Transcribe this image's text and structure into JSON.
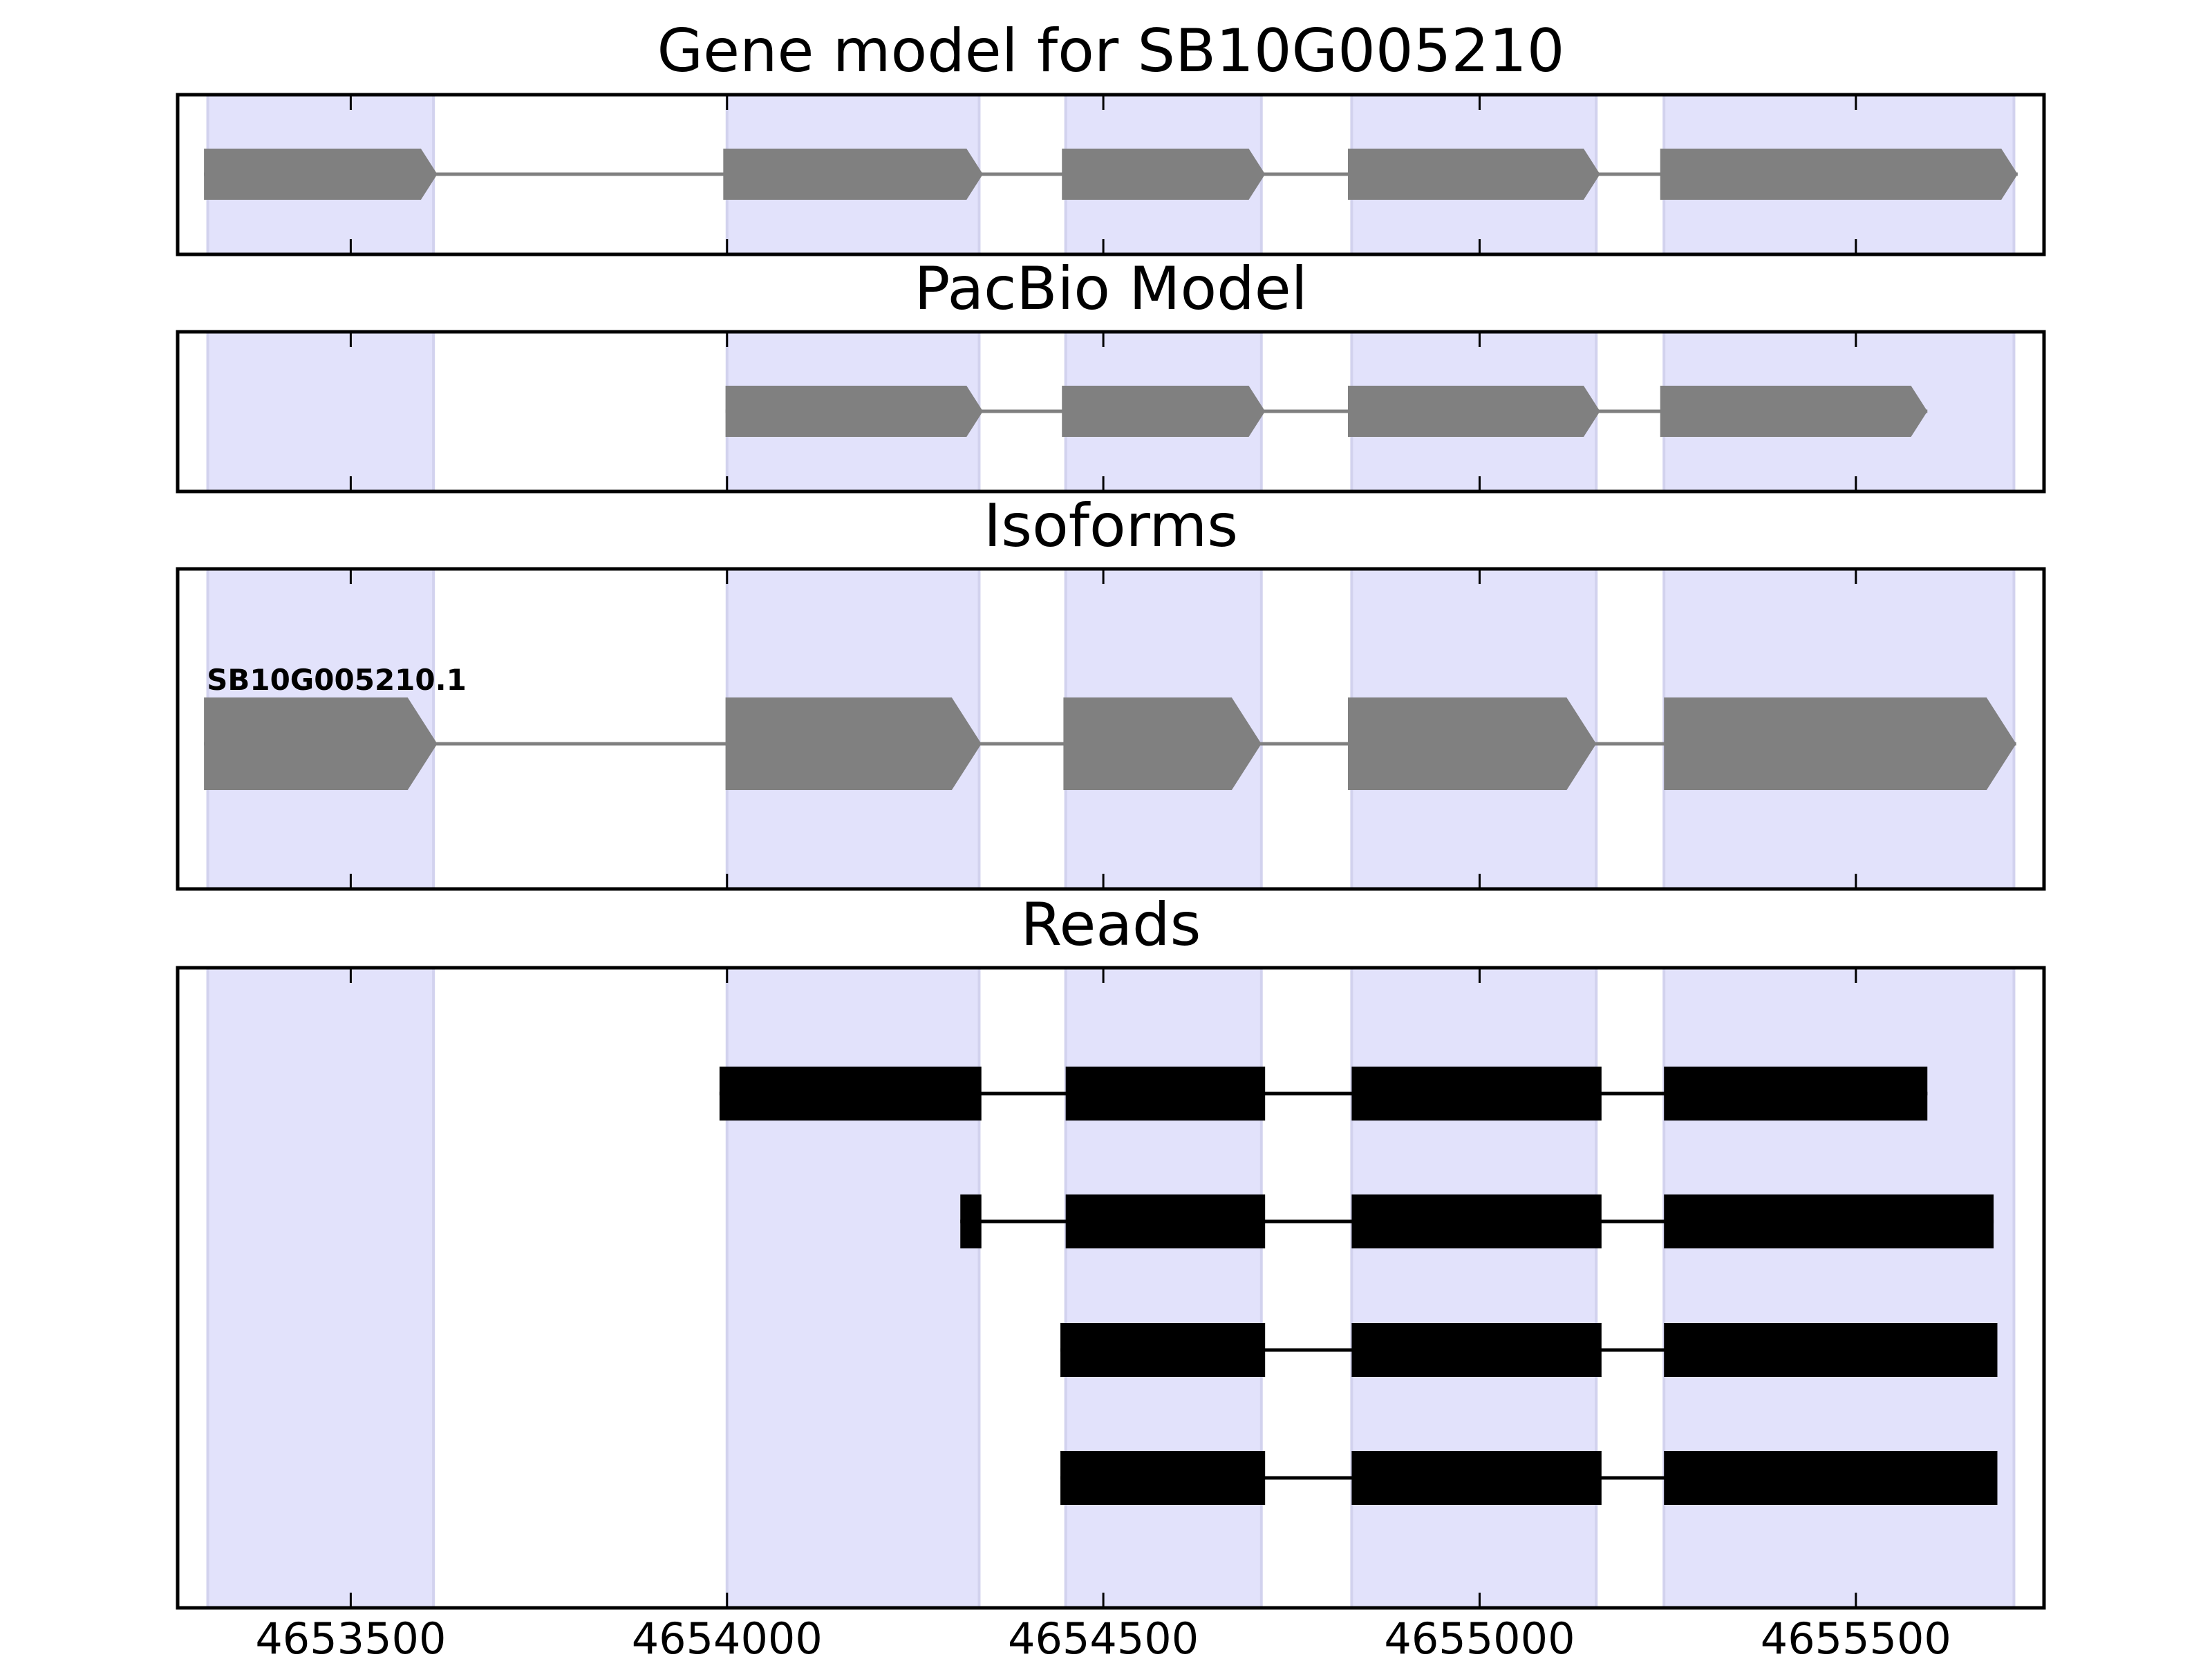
{
  "chart_data": {
    "type": "gene-model",
    "x_axis": {
      "range": [
        4653270,
        4655750
      ],
      "ticks": [
        4653500,
        4654000,
        4654500,
        4655000,
        4655500
      ],
      "tick_labels": [
        "4653500",
        "4654000",
        "4654500",
        "4655000",
        "4655500"
      ]
    },
    "highlight_color": "#e2e2fb",
    "highlight_edge_color": "#d2d2ee",
    "exon_highlights": [
      [
        4653310,
        4653610
      ],
      [
        4654000,
        4654335
      ],
      [
        4654450,
        4654710
      ],
      [
        4654830,
        4655155
      ],
      [
        4655245,
        4655710
      ]
    ],
    "colors": {
      "gene_model": "#808080",
      "reads": "#000000"
    },
    "panels": [
      {
        "id": "gene-model",
        "title": "Gene model for SB10G005210",
        "features": [
          {
            "style": "arrow",
            "exons": [
              [
                4653305,
                4653615
              ],
              [
                4653995,
                4654340
              ],
              [
                4654445,
                4654715
              ],
              [
                4654825,
                4655160
              ],
              [
                4655240,
                4655715
              ]
            ]
          }
        ]
      },
      {
        "id": "pacbio-model",
        "title": "PacBio Model",
        "features": [
          {
            "style": "arrow",
            "exons": [
              [
                4653998,
                4654340
              ],
              [
                4654445,
                4654715
              ],
              [
                4654825,
                4655160
              ],
              [
                4655240,
                4655595
              ]
            ]
          }
        ]
      },
      {
        "id": "isoforms",
        "title": "Isoforms",
        "features": [
          {
            "style": "arrow",
            "label": "SB10G005210.1",
            "exons": [
              [
                4653305,
                4653615
              ],
              [
                4653998,
                4654338
              ],
              [
                4654447,
                4654710
              ],
              [
                4654825,
                4655155
              ],
              [
                4655245,
                4655713
              ]
            ]
          }
        ]
      },
      {
        "id": "reads",
        "title": "Reads",
        "features": [
          {
            "style": "box",
            "exons": [
              [
                4653990,
                4654338
              ],
              [
                4654450,
                4654715
              ],
              [
                4654830,
                4655162
              ],
              [
                4655245,
                4655595
              ]
            ]
          },
          {
            "style": "box",
            "exons": [
              [
                4654310,
                4654338
              ],
              [
                4654450,
                4654715
              ],
              [
                4654830,
                4655162
              ],
              [
                4655245,
                4655683
              ]
            ]
          },
          {
            "style": "box",
            "exons": [
              [
                4654443,
                4654715
              ],
              [
                4654830,
                4655162
              ],
              [
                4655245,
                4655688
              ]
            ]
          },
          {
            "style": "box",
            "exons": [
              [
                4654443,
                4654715
              ],
              [
                4654830,
                4655162
              ],
              [
                4655245,
                4655688
              ]
            ]
          }
        ]
      }
    ]
  }
}
